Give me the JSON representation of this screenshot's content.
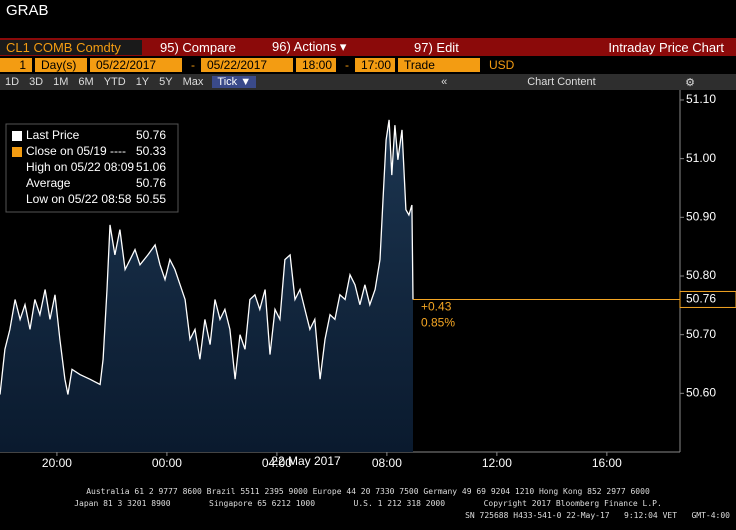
{
  "header": {
    "title": "GRAB"
  },
  "toolbar": {
    "security": "CL1 COMB Comdty",
    "compare": "95) Compare",
    "actions": "96) Actions ▾",
    "edit": "97) Edit",
    "function_title": "Intraday Price Chart"
  },
  "settings": {
    "period_count": "1",
    "period_unit": "Day(s)",
    "start_date": "05/22/2017",
    "date_sep": "-",
    "end_date": "05/22/2017",
    "start_time": "18:00",
    "time_sep": "-",
    "end_time": "17:00",
    "field": "Trade",
    "currency": "USD"
  },
  "ranges": {
    "buttons": [
      "1D",
      "3D",
      "1M",
      "6M",
      "YTD",
      "1Y",
      "5Y",
      "Max"
    ],
    "active": "Tick ▼",
    "collapse": "«",
    "chart_content": "Chart Content",
    "settings_icon": "⚙"
  },
  "chart_data": {
    "type": "area",
    "date_label": "22 May 2017",
    "x": [
      17.93,
      18.11,
      18.29,
      18.48,
      18.66,
      18.84,
      19.02,
      19.2,
      19.38,
      19.57,
      19.75,
      19.93,
      20.11,
      20.29,
      20.4,
      20.55,
      20.84,
      21.2,
      21.57,
      21.68,
      21.82,
      21.93,
      22.11,
      22.29,
      22.48,
      22.66,
      22.84,
      23.02,
      23.31,
      23.57,
      23.75,
      23.93,
      24.11,
      24.29,
      24.48,
      24.66,
      24.84,
      25.02,
      25.2,
      25.38,
      25.57,
      25.75,
      25.93,
      26.11,
      26.29,
      26.48,
      26.66,
      26.84,
      27.02,
      27.2,
      27.38,
      27.57,
      27.75,
      27.93,
      28.11,
      28.29,
      28.48,
      28.66,
      28.84,
      29.02,
      29.2,
      29.38,
      29.57,
      29.75,
      29.93,
      30.11,
      30.29,
      30.48,
      30.66,
      30.84,
      31.02,
      31.2,
      31.38,
      31.57,
      31.75,
      31.86,
      31.97,
      32.08,
      32.18,
      32.29,
      32.4,
      32.55,
      32.69,
      32.8,
      32.91,
      32.95
    ],
    "series": [
      {
        "name": "Last Price",
        "color": "#ffffff",
        "values": [
          50.598,
          50.675,
          50.709,
          50.76,
          50.726,
          50.751,
          50.709,
          50.76,
          50.734,
          50.777,
          50.726,
          50.768,
          50.692,
          50.624,
          50.598,
          50.641,
          50.632,
          50.624,
          50.615,
          50.658,
          50.777,
          50.887,
          50.836,
          50.879,
          50.811,
          50.828,
          50.845,
          50.819,
          50.836,
          50.853,
          50.819,
          50.794,
          50.828,
          50.811,
          50.785,
          50.76,
          50.692,
          50.709,
          50.658,
          50.726,
          50.683,
          50.76,
          50.726,
          50.743,
          50.709,
          50.624,
          50.7,
          50.675,
          50.76,
          50.768,
          50.743,
          50.777,
          50.666,
          50.743,
          50.726,
          50.828,
          50.836,
          50.76,
          50.777,
          50.743,
          50.709,
          50.726,
          50.624,
          50.692,
          50.734,
          50.726,
          50.768,
          50.76,
          50.802,
          50.785,
          50.751,
          50.785,
          50.751,
          50.777,
          50.828,
          50.93,
          51.032,
          51.066,
          50.972,
          51.057,
          50.998,
          51.049,
          50.913,
          50.904,
          50.921,
          50.76
        ]
      }
    ],
    "xlim": [
      17.93,
      42.66
    ],
    "xticks": [
      {
        "value": 20,
        "label": "20:00"
      },
      {
        "value": 24,
        "label": "00:00"
      },
      {
        "value": 28,
        "label": "04:00"
      },
      {
        "value": 32,
        "label": "08:00"
      },
      {
        "value": 36,
        "label": "12:00"
      },
      {
        "value": 40,
        "label": "16:00"
      }
    ],
    "ylim": [
      50.5,
      51.117
    ],
    "yticks": [
      {
        "value": 50.6,
        "label": "50.60"
      },
      {
        "value": 50.7,
        "label": "50.70"
      },
      {
        "value": 50.8,
        "label": "50.80"
      },
      {
        "value": 50.9,
        "label": "50.90"
      },
      {
        "value": 51,
        "label": "51.00"
      },
      {
        "value": 51.1,
        "label": "51.10"
      }
    ],
    "last_price_line": {
      "value": 50.76,
      "color": "#f5a623"
    },
    "change": "+0.43",
    "change_pct": "0.85%",
    "legend": [
      {
        "label": "Last Price",
        "value": 50.76
      },
      {
        "label": "Close on 05/19 ----",
        "value": 50.33
      },
      {
        "label": "High on 05/22 08:09",
        "value": 51.06
      },
      {
        "label": "Average",
        "value": 50.76
      },
      {
        "label": "Low on 05/22 08:58",
        "value": 50.55
      }
    ]
  },
  "footer": [
    "Australia 61 2 9777 8600 Brazil 5511 2395 9000 Europe 44 20 7330 7500 Germany 49 69 9204 1210 Hong Kong 852 2977 6000",
    "Japan 81 3 3201 8900        Singapore 65 6212 1000        U.S. 1 212 318 2000        Copyright 2017 Bloomberg Finance L.P.",
    "SN 725688 H433-541-0 22-May-17   9:12:04 VET   GMT-4:00"
  ]
}
